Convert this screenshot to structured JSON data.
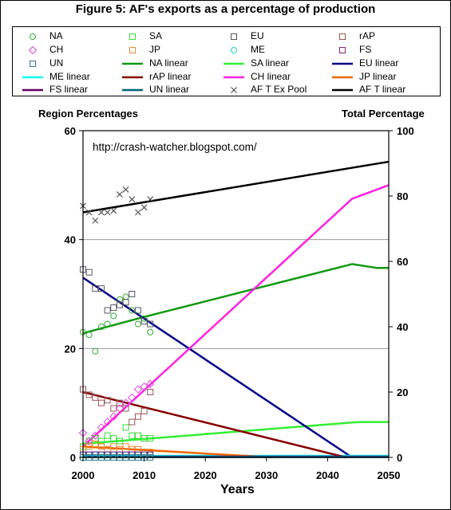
{
  "chart_data": {
    "type": "scatter",
    "title": "Figure 5: AF's exports as a percentage of production",
    "annotation": "http://crash-watcher.blogspot.com/",
    "xlabel": "Years",
    "ylabel_left": "Region Percentages",
    "ylabel_right": "Total Percentage",
    "xlim": [
      2000,
      2050
    ],
    "ylim_left": [
      0,
      60
    ],
    "ylim_right": [
      0,
      100
    ],
    "x_ticks": [
      "2000",
      "2010",
      "2020",
      "2030",
      "2040",
      "2050"
    ],
    "y_left_ticks": [
      "0",
      "20",
      "40",
      "60"
    ],
    "y_right_ticks": [
      "0",
      "20",
      "40",
      "60",
      "80",
      "100"
    ],
    "grid": "horizontal",
    "legend_position": "top",
    "scatter_series": [
      {
        "name": "NA",
        "marker": "circle",
        "color": "#33aa33",
        "axis": "left",
        "x": [
          2000,
          2001,
          2002,
          2003,
          2004,
          2005,
          2006,
          2007,
          2008,
          2009,
          2010,
          2011
        ],
        "y": [
          23.0,
          22.5,
          19.5,
          24.0,
          24.5,
          26.0,
          29.0,
          29.5,
          27.0,
          24.5,
          25.5,
          23.0
        ]
      },
      {
        "name": "SA",
        "marker": "square",
        "color": "#33dd33",
        "axis": "left",
        "x": [
          2000,
          2001,
          2002,
          2003,
          2004,
          2005,
          2006,
          2007,
          2008,
          2009,
          2010,
          2011
        ],
        "y": [
          2.0,
          3.0,
          3.5,
          3.0,
          4.0,
          3.5,
          3.0,
          5.5,
          4.0,
          4.0,
          3.5,
          3.5
        ]
      },
      {
        "name": "EU",
        "marker": "square",
        "color": "#555566",
        "axis": "left",
        "x": [
          2000,
          2001,
          2002,
          2003,
          2004,
          2005,
          2006,
          2007,
          2008,
          2009,
          2010,
          2011
        ],
        "y": [
          34.5,
          34.0,
          31.0,
          31.0,
          27.0,
          27.5,
          28.0,
          28.5,
          30.0,
          27.0,
          25.0,
          24.5
        ]
      },
      {
        "name": "rAP",
        "marker": "square",
        "color": "#995555",
        "axis": "left",
        "x": [
          2000,
          2001,
          2002,
          2003,
          2004,
          2005,
          2006,
          2007,
          2008,
          2009,
          2010,
          2011
        ],
        "y": [
          12.5,
          11.5,
          11.0,
          10.0,
          10.5,
          9.0,
          10.0,
          9.0,
          6.5,
          7.5,
          8.5,
          12.0
        ]
      },
      {
        "name": "CH",
        "marker": "diamond",
        "color": "#dd44dd",
        "axis": "left",
        "x": [
          2000,
          2001,
          2002,
          2003,
          2004,
          2005,
          2006,
          2007,
          2008,
          2009,
          2010,
          2011
        ],
        "y": [
          4.5,
          3.0,
          4.0,
          5.5,
          6.5,
          7.5,
          9.0,
          10.0,
          11.0,
          12.5,
          13.0,
          13.5
        ]
      },
      {
        "name": "JP",
        "marker": "square",
        "color": "#ee8833",
        "axis": "left",
        "x": [
          2000,
          2001,
          2002,
          2003,
          2004,
          2005,
          2006,
          2007,
          2008,
          2009,
          2010,
          2011
        ],
        "y": [
          1.5,
          2.0,
          2.5,
          2.0,
          1.5,
          2.0,
          1.5,
          2.0,
          1.5,
          1.5,
          1.0,
          1.0
        ]
      },
      {
        "name": "ME",
        "marker": "circle",
        "color": "#22cccc",
        "axis": "left",
        "x": [
          2000,
          2001,
          2002,
          2003,
          2004,
          2005,
          2006,
          2007,
          2008,
          2009,
          2010,
          2011
        ],
        "y": [
          0.5,
          0.5,
          0.5,
          0.5,
          0.5,
          0.5,
          0.5,
          0.5,
          0.5,
          0.5,
          0.5,
          0.5
        ]
      },
      {
        "name": "FS",
        "marker": "square",
        "color": "#882288",
        "axis": "left",
        "x": [
          2000,
          2001,
          2002,
          2003,
          2004,
          2005,
          2006,
          2007,
          2008,
          2009,
          2010,
          2011
        ],
        "y": [
          0.5,
          0.5,
          0.5,
          0.5,
          0.5,
          0.5,
          0.5,
          0.5,
          0.5,
          0.5,
          0.5,
          0.5
        ]
      },
      {
        "name": "UN",
        "marker": "square",
        "color": "#337788",
        "axis": "left",
        "x": [
          2000,
          2001,
          2002,
          2003,
          2004,
          2005,
          2006,
          2007,
          2008,
          2009,
          2010,
          2011
        ],
        "y": [
          0,
          0,
          0,
          0,
          0,
          0,
          0,
          0,
          0,
          0,
          0,
          0
        ]
      },
      {
        "name": "AF T Ex Pool",
        "marker": "x",
        "color": "#555555",
        "axis": "right",
        "x": [
          2000,
          2001,
          2002,
          2003,
          2004,
          2005,
          2006,
          2007,
          2008,
          2009,
          2010,
          2011
        ],
        "y": [
          77.0,
          75.0,
          72.5,
          75.0,
          75.0,
          75.5,
          80.5,
          82.0,
          79.0,
          75.0,
          76.5,
          79.0
        ]
      }
    ],
    "line_series": [
      {
        "name": "NA linear",
        "color": "#119911",
        "axis": "left",
        "x": [
          2000,
          2010,
          2044,
          2048,
          2050
        ],
        "y": [
          22.8,
          25.8,
          35.5,
          34.8,
          34.8
        ]
      },
      {
        "name": "SA linear",
        "color": "#33ee33",
        "axis": "left",
        "x": [
          2000,
          2045,
          2050
        ],
        "y": [
          2.5,
          6.5,
          6.5
        ]
      },
      {
        "name": "EU linear",
        "color": "#000088",
        "axis": "left",
        "x": [
          2000,
          2044
        ],
        "y": [
          33.0,
          0
        ]
      },
      {
        "name": "ME linear",
        "color": "#00ffff",
        "axis": "left",
        "x": [
          2000,
          2050
        ],
        "y": [
          0.3,
          0.3
        ]
      },
      {
        "name": "rAP linear",
        "color": "#880000",
        "axis": "left",
        "x": [
          2000,
          2043
        ],
        "y": [
          12.0,
          0
        ]
      },
      {
        "name": "CH linear",
        "color": "#ff22dd",
        "axis": "left",
        "x": [
          2000,
          2044,
          2050
        ],
        "y": [
          2.0,
          47.5,
          50.0
        ]
      },
      {
        "name": "JP linear",
        "color": "#ee6600",
        "axis": "left",
        "x": [
          2000,
          2031
        ],
        "y": [
          2.0,
          0
        ]
      },
      {
        "name": "FS linear",
        "color": "#660066",
        "axis": "left",
        "x": [
          2000,
          2050
        ],
        "y": [
          0.15,
          0.15
        ]
      },
      {
        "name": "UN linear",
        "color": "#006677",
        "axis": "left",
        "x": [
          2000,
          2050
        ],
        "y": [
          0.05,
          0.05
        ]
      },
      {
        "name": "AF T linear",
        "color": "#000000",
        "axis": "right",
        "x": [
          2000,
          2050
        ],
        "y": [
          75.0,
          90.5
        ]
      }
    ]
  },
  "legend": [
    {
      "name": "NA",
      "kind": "marker",
      "marker": "circle",
      "color": "#33aa33"
    },
    {
      "name": "SA",
      "kind": "marker",
      "marker": "square",
      "color": "#33dd33"
    },
    {
      "name": "EU",
      "kind": "marker",
      "marker": "square",
      "color": "#555566"
    },
    {
      "name": "rAP",
      "kind": "marker",
      "marker": "square",
      "color": "#995555"
    },
    {
      "name": "CH",
      "kind": "marker",
      "marker": "diamond",
      "color": "#dd44dd"
    },
    {
      "name": "JP",
      "kind": "marker",
      "marker": "square",
      "color": "#ee8833"
    },
    {
      "name": "ME",
      "kind": "marker",
      "marker": "circle",
      "color": "#22cccc"
    },
    {
      "name": "FS",
      "kind": "marker",
      "marker": "square",
      "color": "#882288"
    },
    {
      "name": "UN",
      "kind": "marker",
      "marker": "square",
      "color": "#337788"
    },
    {
      "name": "NA linear",
      "kind": "line",
      "color": "#119911"
    },
    {
      "name": "SA linear",
      "kind": "line",
      "color": "#33ee33"
    },
    {
      "name": "EU linear",
      "kind": "line",
      "color": "#000088"
    },
    {
      "name": "ME linear",
      "kind": "line",
      "color": "#00ffff"
    },
    {
      "name": "rAP linear",
      "kind": "line",
      "color": "#880000"
    },
    {
      "name": "CH linear",
      "kind": "line",
      "color": "#ff22dd"
    },
    {
      "name": "JP linear",
      "kind": "line",
      "color": "#ee6600"
    },
    {
      "name": "FS linear",
      "kind": "line",
      "color": "#660066"
    },
    {
      "name": "UN linear",
      "kind": "line",
      "color": "#006677"
    },
    {
      "name": "AF T Ex Pool",
      "kind": "marker",
      "marker": "x",
      "color": "#555555"
    },
    {
      "name": "AF T linear",
      "kind": "line",
      "color": "#000000"
    }
  ]
}
